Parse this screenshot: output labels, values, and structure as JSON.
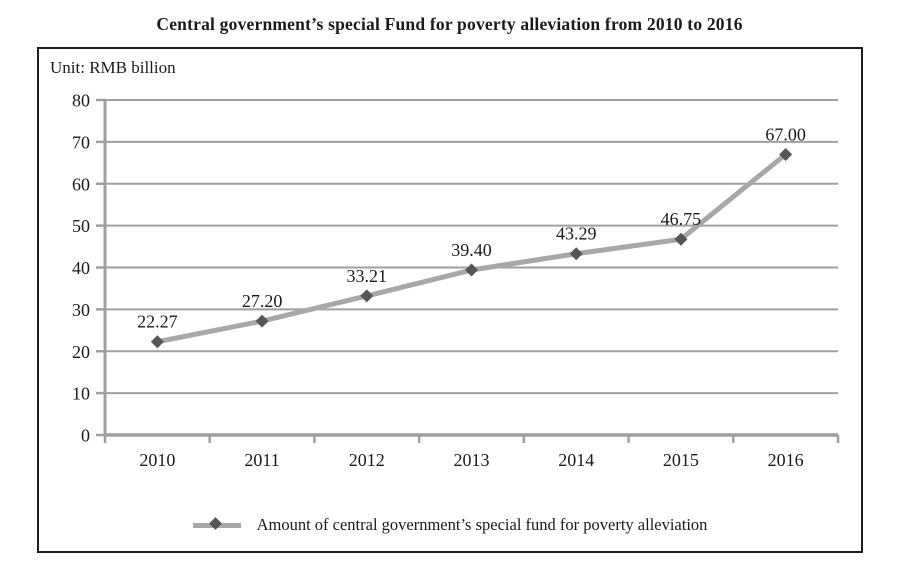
{
  "page": {
    "title": "Central government’s special Fund for poverty alleviation from 2010 to 2016"
  },
  "chart": {
    "unit_label": "Unit: RMB billion"
  },
  "legend": {
    "label": "Amount of central government’s special fund for poverty alleviation"
  },
  "chart_data": {
    "type": "line",
    "title": "Central government’s special Fund for poverty alleviation from 2010 to 2016",
    "unit": "RMB billion",
    "xlabel": "",
    "ylabel": "",
    "categories": [
      "2010",
      "2011",
      "2012",
      "2013",
      "2014",
      "2015",
      "2016"
    ],
    "series": [
      {
        "name": "Amount of central government’s special fund for poverty alleviation",
        "values": [
          22.27,
          27.2,
          33.21,
          39.4,
          43.29,
          46.75,
          67.0
        ],
        "labels": [
          "22.27",
          "27.20",
          "33.21",
          "39.40",
          "43.29",
          "46.75",
          "67.00"
        ]
      }
    ],
    "ylim": [
      0,
      80
    ],
    "ytick_step": 10,
    "grid": true,
    "legend_position": "bottom",
    "colors": {
      "grid": "#9f9f9f",
      "axis": "#9f9f9f",
      "line": "#a8a8a8",
      "marker": "#565656",
      "text": "#1a1a1a",
      "border": "#1c1c1c"
    }
  }
}
